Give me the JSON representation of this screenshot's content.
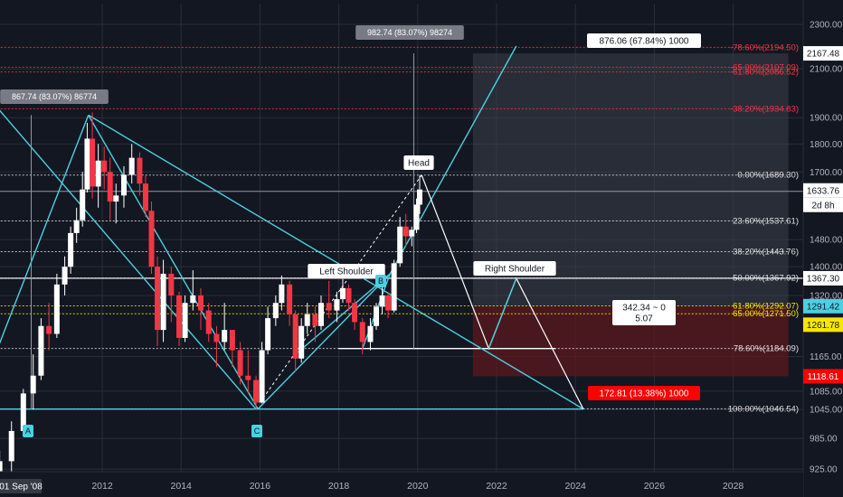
{
  "colors": {
    "background": "#131722",
    "grid": "#2a2e39",
    "up_candle": "#ffffff",
    "down_candle": "#f23645",
    "pattern_line": "#4dd0e1",
    "fib_line": "#e0e0e0",
    "fib_red": "#f23645",
    "fib_yellow": "#f7e600",
    "target_zone": "#3a3f4b",
    "stop_zone": "#5c1a1f",
    "label_dark_bg": "#787b86",
    "label_white_bg": "#ffffff",
    "stop_label_bg": "#ff0000",
    "price_tag_red": "#ff0000"
  },
  "chart_data": {
    "type": "candlestick",
    "title": "",
    "xlabel": "",
    "ylabel": "",
    "y_scale": "log",
    "ylim": [
      920,
      2400
    ],
    "xlim": [
      2009.0,
      2030.0
    ],
    "grid": true,
    "x_ticks": [
      "2012",
      "2014",
      "2016",
      "2018",
      "2020",
      "2022",
      "2024",
      "2026",
      "2028"
    ],
    "x_corner_label": "01 Sep '08",
    "y_ticks": [
      "2300.00",
      "2100.00",
      "1900.00",
      "1800.00",
      "1700.00",
      "1480.00",
      "1400.00",
      "1320.00",
      "1165.00",
      "1085.00",
      "1045.00",
      "985.00",
      "925.00"
    ],
    "series": [
      {
        "points": [
          [
            2009.4,
            890,
            960,
            870,
            940
          ],
          [
            2009.7,
            940,
            1020,
            920,
            1000
          ],
          [
            2010.0,
            1000,
            1090,
            990,
            1080
          ],
          [
            2010.25,
            1080,
            1170,
            1045,
            1120
          ],
          [
            2010.45,
            1120,
            1260,
            1110,
            1240
          ],
          [
            2010.65,
            1240,
            1300,
            1180,
            1220
          ],
          [
            2010.85,
            1220,
            1380,
            1210,
            1350
          ],
          [
            2011.05,
            1350,
            1430,
            1320,
            1400
          ],
          [
            2011.2,
            1400,
            1520,
            1380,
            1500
          ],
          [
            2011.35,
            1500,
            1580,
            1470,
            1540
          ],
          [
            2011.5,
            1540,
            1700,
            1520,
            1640
          ],
          [
            2011.62,
            1640,
            1880,
            1630,
            1820
          ],
          [
            2011.75,
            1820,
            1920,
            1610,
            1650
          ],
          [
            2011.9,
            1650,
            1800,
            1580,
            1740
          ],
          [
            2012.05,
            1740,
            1790,
            1640,
            1700
          ],
          [
            2012.2,
            1700,
            1750,
            1540,
            1600
          ],
          [
            2012.35,
            1600,
            1660,
            1530,
            1620
          ],
          [
            2012.55,
            1620,
            1720,
            1580,
            1690
          ],
          [
            2012.75,
            1690,
            1800,
            1660,
            1750
          ],
          [
            2012.95,
            1750,
            1770,
            1620,
            1660
          ],
          [
            2013.1,
            1660,
            1690,
            1550,
            1570
          ],
          [
            2013.25,
            1570,
            1600,
            1380,
            1400
          ],
          [
            2013.4,
            1400,
            1430,
            1190,
            1230
          ],
          [
            2013.55,
            1230,
            1420,
            1200,
            1380
          ],
          [
            2013.75,
            1380,
            1400,
            1250,
            1320
          ],
          [
            2013.95,
            1320,
            1330,
            1190,
            1210
          ],
          [
            2014.1,
            1210,
            1320,
            1200,
            1300
          ],
          [
            2014.3,
            1300,
            1390,
            1280,
            1320
          ],
          [
            2014.5,
            1320,
            1340,
            1230,
            1280
          ],
          [
            2014.7,
            1280,
            1300,
            1200,
            1220
          ],
          [
            2014.9,
            1220,
            1240,
            1140,
            1200
          ],
          [
            2015.1,
            1200,
            1300,
            1180,
            1230
          ],
          [
            2015.3,
            1230,
            1230,
            1140,
            1180
          ],
          [
            2015.5,
            1180,
            1200,
            1100,
            1120
          ],
          [
            2015.7,
            1120,
            1180,
            1080,
            1110
          ],
          [
            2015.9,
            1110,
            1120,
            1046,
            1060
          ],
          [
            2016.05,
            1060,
            1200,
            1058,
            1180
          ],
          [
            2016.2,
            1180,
            1290,
            1170,
            1260
          ],
          [
            2016.4,
            1260,
            1320,
            1240,
            1300
          ],
          [
            2016.55,
            1300,
            1375,
            1280,
            1350
          ],
          [
            2016.75,
            1350,
            1360,
            1240,
            1270
          ],
          [
            2016.9,
            1270,
            1280,
            1130,
            1160
          ],
          [
            2017.05,
            1160,
            1260,
            1150,
            1240
          ],
          [
            2017.2,
            1240,
            1300,
            1220,
            1270
          ],
          [
            2017.4,
            1270,
            1290,
            1200,
            1240
          ],
          [
            2017.55,
            1240,
            1320,
            1230,
            1300
          ],
          [
            2017.75,
            1300,
            1360,
            1260,
            1280
          ],
          [
            2017.95,
            1280,
            1330,
            1250,
            1310
          ],
          [
            2018.1,
            1310,
            1365,
            1300,
            1340
          ],
          [
            2018.25,
            1340,
            1350,
            1280,
            1300
          ],
          [
            2018.4,
            1300,
            1310,
            1230,
            1250
          ],
          [
            2018.6,
            1250,
            1260,
            1170,
            1200
          ],
          [
            2018.8,
            1200,
            1260,
            1180,
            1240
          ],
          [
            2018.95,
            1240,
            1300,
            1230,
            1290
          ],
          [
            2019.1,
            1290,
            1350,
            1270,
            1320
          ],
          [
            2019.25,
            1320,
            1330,
            1260,
            1280
          ],
          [
            2019.4,
            1280,
            1420,
            1275,
            1410
          ],
          [
            2019.55,
            1410,
            1550,
            1400,
            1520
          ],
          [
            2019.7,
            1520,
            1560,
            1460,
            1490
          ],
          [
            2019.85,
            1490,
            1520,
            1460,
            1510
          ],
          [
            2019.97,
            1510,
            1610,
            1500,
            1590
          ],
          [
            2020.05,
            1590,
            1689,
            1560,
            1640
          ]
        ]
      }
    ],
    "fib_levels": [
      {
        "label": "0.00%(1689.30)",
        "value": 1689.3
      },
      {
        "label": "23.60%(1537.61)",
        "value": 1537.61
      },
      {
        "label": "38.20%(1443.76)",
        "value": 1443.76
      },
      {
        "label": "50.00%(1367.92)",
        "value": 1367.92
      },
      {
        "label": "61.80%(1292.07)",
        "value": 1292.07
      },
      {
        "label": "65.00%(1271.50)",
        "value": 1271.5
      },
      {
        "label": "78.60%(1184.09)",
        "value": 1184.09
      },
      {
        "label": "100.00%(1046.54)",
        "value": 1046.54
      },
      {
        "label": "-38.20%(1934.83)",
        "value": 1934.83
      },
      {
        "label": "-61.80%(2086.52)",
        "value": 2086.52
      },
      {
        "label": "-65.00%(2107.09)",
        "value": 2107.09
      },
      {
        "label": "-78.60%(2194.50)",
        "value": 2194.5
      }
    ],
    "pattern_labels": {
      "head": "Head",
      "left_shoulder": "Left Shoulder",
      "right_shoulder": "Right Shoulder",
      "point_a": "A",
      "point_b": "B",
      "point_c": "C"
    },
    "measure_labels": {
      "first_leg": "867.74 (83.07%) 86774",
      "second_leg": "982.74 (83.07%) 98274",
      "target": "876.06 (67.84%) 1000",
      "risk_reward_ratio": "342.34 ~ 0",
      "risk_reward_value": "5.07",
      "stop": "172.81 (13.38%) 1000"
    },
    "price_tags": {
      "target": "2167.48",
      "current": "1633.76",
      "countdown": "2d 8h",
      "neckline": "1367.30",
      "entry": "1291.42",
      "entry2": "1261.78",
      "stop": "1118.61"
    }
  }
}
